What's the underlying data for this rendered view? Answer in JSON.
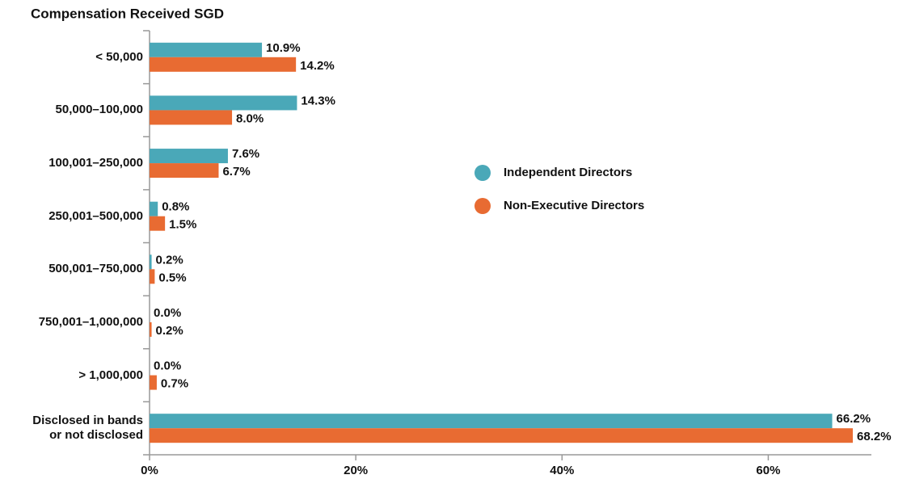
{
  "chart_data": {
    "type": "hbar",
    "title": "Compensation Received SGD",
    "categories": [
      "< 50,000",
      "50,000–100,000",
      "100,001–250,000",
      "250,001–500,000",
      "500,001–750,000",
      "750,001–1,000,000",
      "> 1,000,000",
      "Disclosed in bands\nor not disclosed"
    ],
    "series": [
      {
        "name": "Independent Directors",
        "color": "#4aa8b8",
        "values": [
          10.9,
          14.3,
          7.6,
          0.8,
          0.2,
          0.0,
          0.0,
          66.2
        ],
        "value_labels": [
          "10.9%",
          "14.3%",
          "7.6%",
          "0.8%",
          "0.2%",
          "0.0%",
          "0.0%",
          "66.2%"
        ]
      },
      {
        "name": "Non-Executive Directors",
        "color": "#e86b32",
        "values": [
          14.2,
          8.0,
          6.7,
          1.5,
          0.5,
          0.2,
          0.7,
          68.2
        ],
        "value_labels": [
          "14.2%",
          "8.0%",
          "6.7%",
          "1.5%",
          "0.5%",
          "0.2%",
          "0.7%",
          "68.2%"
        ]
      }
    ],
    "xlim": [
      0,
      70
    ],
    "xticks": [
      {
        "value": 0,
        "label": "0%"
      },
      {
        "value": 20,
        "label": "20%"
      },
      {
        "value": 40,
        "label": "40%"
      },
      {
        "value": 60,
        "label": "60%"
      }
    ]
  }
}
